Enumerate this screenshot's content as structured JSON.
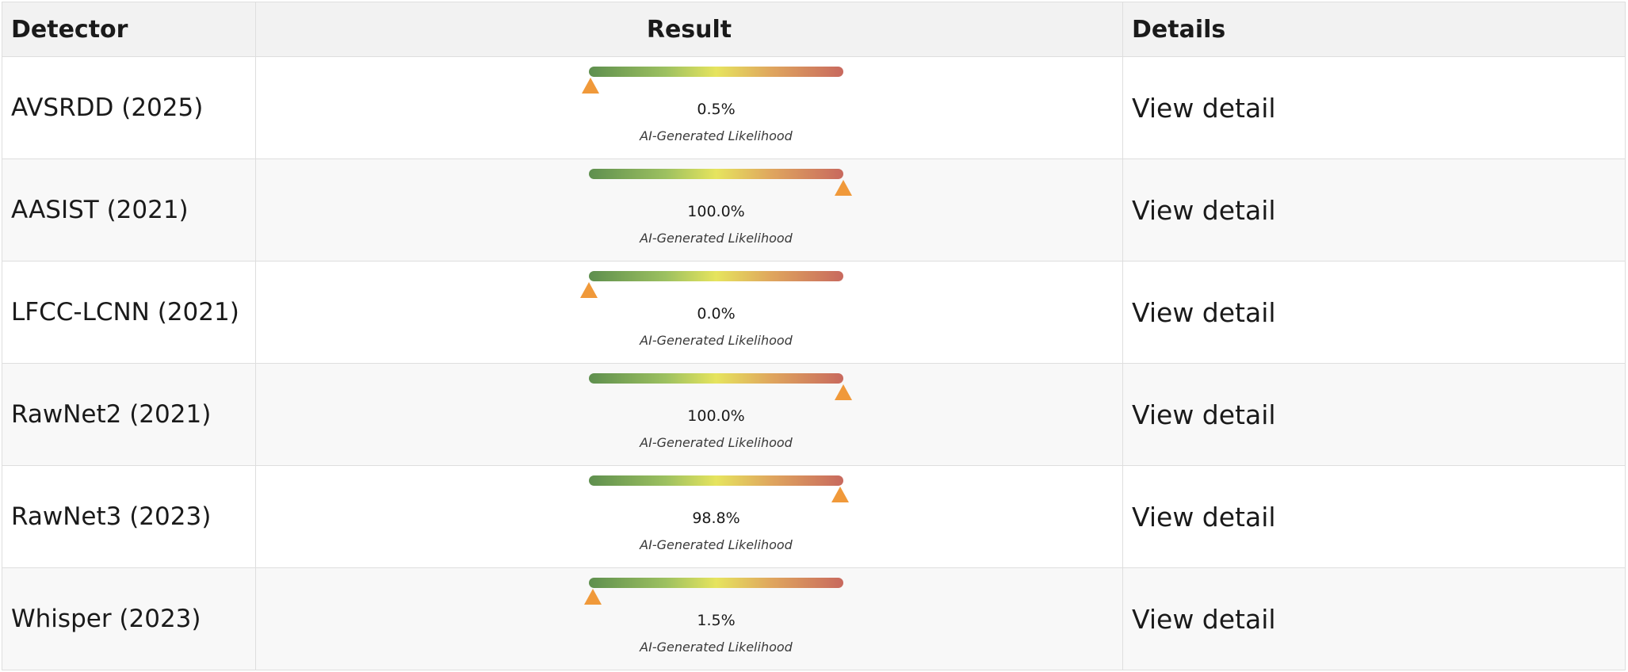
{
  "table": {
    "headers": {
      "detector": "Detector",
      "result": "Result",
      "details": "Details"
    },
    "caption_text": "AI-Generated Likelihood",
    "marker_color": "#f0993a",
    "gradient_colors": [
      "#5e8f4e",
      "#e6e45e",
      "#c8695e"
    ],
    "rows": [
      {
        "detector": "AVSRDD (2025)",
        "likelihood_text": "0.5%",
        "likelihood": 0.005,
        "caption": "AI-Generated Likelihood",
        "details": "View detail"
      },
      {
        "detector": "AASIST (2021)",
        "likelihood_text": "100.0%",
        "likelihood": 1.0,
        "caption": "AI-Generated Likelihood",
        "details": "View detail"
      },
      {
        "detector": "LFCC-LCNN (2021)",
        "likelihood_text": "0.0%",
        "likelihood": 0.0,
        "caption": "AI-Generated Likelihood",
        "details": "View detail"
      },
      {
        "detector": "RawNet2 (2021)",
        "likelihood_text": "100.0%",
        "likelihood": 1.0,
        "caption": "AI-Generated Likelihood",
        "details": "View detail"
      },
      {
        "detector": "RawNet3 (2023)",
        "likelihood_text": "98.8%",
        "likelihood": 0.988,
        "caption": "AI-Generated Likelihood",
        "details": "View detail"
      },
      {
        "detector": "Whisper (2023)",
        "likelihood_text": "1.5%",
        "likelihood": 0.015,
        "caption": "AI-Generated Likelihood",
        "details": "View detail"
      }
    ]
  }
}
